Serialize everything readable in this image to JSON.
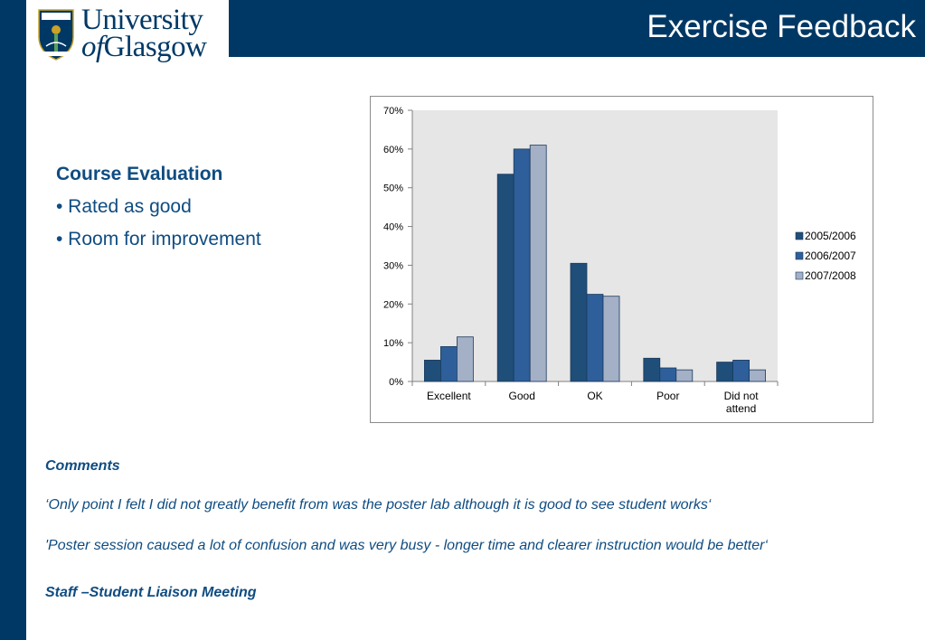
{
  "header": {
    "logo_alt_text": "University of Glasgow crest",
    "logo_line1": "University",
    "logo_of": "of",
    "logo_glasgow": "Glasgow",
    "title": "Exercise Feedback"
  },
  "evaluation": {
    "heading": "Course Evaluation",
    "bullets": [
      "• Rated as good",
      "• Room for improvement"
    ]
  },
  "comments": {
    "heading": "Comments",
    "quote1": "‘Only point I felt I did not greatly benefit from was the poster lab although it is good to see student works‘",
    "quote2": " 'Poster session caused a lot of confusion and was very busy - longer time and clearer instruction would be better‘",
    "footer": "Staff –Student Liaison Meeting"
  },
  "colors": {
    "brand_navy": "#003865",
    "text_blue": "#0f4c81",
    "series_2005": "#1f4e79",
    "series_2006": "#2e5f9a",
    "series_2007": "#a3b0c6",
    "plot_bg": "#e6e6e6"
  },
  "chart_data": {
    "type": "bar",
    "title": "",
    "xlabel": "",
    "ylabel": "",
    "ylim": [
      0,
      70
    ],
    "yticks": [
      "0%",
      "10%",
      "20%",
      "30%",
      "40%",
      "50%",
      "60%",
      "70%"
    ],
    "categories": [
      "Excellent",
      "Good",
      "OK",
      "Poor",
      "Did not attend"
    ],
    "category_lines": [
      [
        "Excellent"
      ],
      [
        "Good"
      ],
      [
        "OK"
      ],
      [
        "Poor"
      ],
      [
        "Did not",
        "attend"
      ]
    ],
    "series": [
      {
        "name": "2005/2006",
        "values": [
          5.5,
          53.5,
          30.5,
          6,
          5
        ]
      },
      {
        "name": "2006/2007",
        "values": [
          9,
          60,
          22.5,
          3.5,
          5.5
        ]
      },
      {
        "name": "2007/2008",
        "values": [
          11.5,
          61,
          22,
          3,
          3
        ]
      }
    ],
    "legend_position": "right",
    "grid": false
  }
}
